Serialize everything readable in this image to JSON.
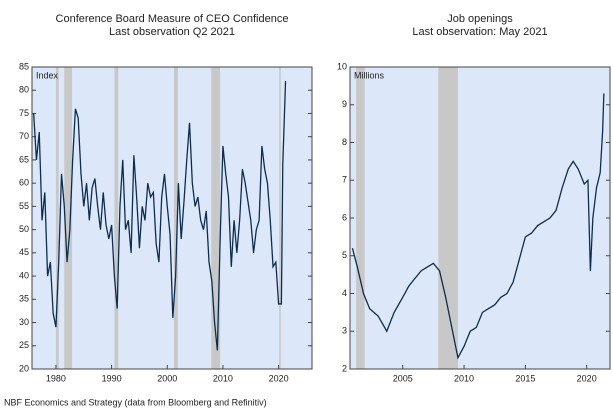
{
  "chart_data": [
    {
      "type": "line",
      "title": "Conference Board Measure of CEO Confidence",
      "subtitle": "Last observation Q2 2021",
      "y_label": "Index",
      "background": "#dce8fa",
      "recession_color": "#c8c8c8",
      "recessions": [
        [
          1980.0,
          1980.5
        ],
        [
          1981.5,
          1982.9
        ],
        [
          1990.5,
          1991.2
        ],
        [
          2001.2,
          2001.9
        ],
        [
          2007.9,
          2009.5
        ],
        [
          2020.1,
          2020.4
        ]
      ],
      "xlim": [
        1975.7,
        2026
      ],
      "xticks": [
        1980,
        1990,
        2000,
        2010,
        2020
      ],
      "ylim": [
        20,
        85
      ],
      "yticks": [
        20,
        25,
        30,
        35,
        40,
        45,
        50,
        55,
        60,
        65,
        70,
        75,
        80,
        85
      ],
      "color": "#0d2d4e",
      "x": [
        1976,
        1976.5,
        1977,
        1977.5,
        1978,
        1978.5,
        1979,
        1979.5,
        1980,
        1980.5,
        1981,
        1981.5,
        1982,
        1982.5,
        1983,
        1983.5,
        1984,
        1984.5,
        1985,
        1985.5,
        1986,
        1986.5,
        1987,
        1987.5,
        1988,
        1988.5,
        1989,
        1989.5,
        1990,
        1990.5,
        1991,
        1991.5,
        1992,
        1992.5,
        1993,
        1993.5,
        1994,
        1994.5,
        1995,
        1995.5,
        1996,
        1996.5,
        1997,
        1997.5,
        1998,
        1998.5,
        1999,
        1999.5,
        2000,
        2000.5,
        2001,
        2001.5,
        2002,
        2002.5,
        2003,
        2003.5,
        2004,
        2004.5,
        2005,
        2005.5,
        2006,
        2006.5,
        2007,
        2007.5,
        2008,
        2008.5,
        2009,
        2009.5,
        2010,
        2010.5,
        2011,
        2011.5,
        2012,
        2012.5,
        2013,
        2013.5,
        2014,
        2014.5,
        2015,
        2015.5,
        2016,
        2016.5,
        2017,
        2017.5,
        2018,
        2018.5,
        2019,
        2019.5,
        2020,
        2020.5,
        2020.75,
        2021,
        2021.25
      ],
      "values": [
        75,
        65,
        71,
        52,
        58,
        40,
        43,
        32,
        29,
        43,
        62,
        55,
        43,
        50,
        65,
        76,
        74,
        62,
        55,
        60,
        52,
        59,
        61,
        55,
        50,
        58,
        51,
        48,
        51,
        40,
        33,
        55,
        65,
        50,
        52,
        45,
        66,
        57,
        46,
        55,
        52,
        60,
        57,
        58,
        47,
        43,
        57,
        62,
        55,
        49,
        31,
        40,
        60,
        48,
        56,
        65,
        73,
        60,
        55,
        57,
        52,
        50,
        54,
        43,
        39,
        30,
        24,
        48,
        68,
        62,
        57,
        42,
        52,
        45,
        52,
        63,
        60,
        56,
        52,
        45,
        50,
        52,
        68,
        63,
        60,
        52,
        42,
        43,
        34,
        34,
        64,
        73,
        82
      ]
    },
    {
      "type": "line",
      "title": "Job openings",
      "subtitle": "Last observation: May 2021",
      "y_label": "Millions",
      "background": "#dce8fa",
      "recession_color": "#c8c8c8",
      "recessions": [
        [
          2001.2,
          2001.9
        ],
        [
          2007.9,
          2009.5
        ]
      ],
      "xlim": [
        2000.7,
        2021.9
      ],
      "xticks": [
        2005,
        2010,
        2015,
        2020
      ],
      "ylim": [
        2,
        10
      ],
      "yticks": [
        2,
        3,
        4,
        5,
        6,
        7,
        8,
        9,
        10
      ],
      "color": "#0d2d4e",
      "x": [
        2000.9,
        2001.3,
        2001.8,
        2002.3,
        2003,
        2003.7,
        2004.3,
        2005,
        2005.5,
        2006,
        2006.5,
        2007,
        2007.5,
        2008,
        2008.5,
        2009,
        2009.5,
        2010,
        2010.5,
        2011,
        2011.5,
        2012,
        2012.5,
        2013,
        2013.5,
        2014,
        2014.5,
        2015,
        2015.5,
        2016,
        2016.5,
        2017,
        2017.5,
        2018,
        2018.5,
        2018.9,
        2019.3,
        2019.8,
        2020.1,
        2020.3,
        2020.5,
        2020.8,
        2021.1,
        2021.3,
        2021.4
      ],
      "values": [
        5.2,
        4.7,
        4.0,
        3.6,
        3.4,
        3.0,
        3.5,
        3.9,
        4.2,
        4.4,
        4.6,
        4.7,
        4.8,
        4.6,
        3.9,
        3.1,
        2.3,
        2.6,
        3.0,
        3.1,
        3.5,
        3.6,
        3.7,
        3.9,
        4.0,
        4.3,
        4.9,
        5.5,
        5.6,
        5.8,
        5.9,
        6.0,
        6.2,
        6.8,
        7.3,
        7.5,
        7.3,
        6.9,
        7.0,
        4.6,
        6.0,
        6.8,
        7.2,
        8.3,
        9.3
      ]
    }
  ],
  "source": "NBF Economics and Strategy (data from Bloomberg and Refinitiv)"
}
